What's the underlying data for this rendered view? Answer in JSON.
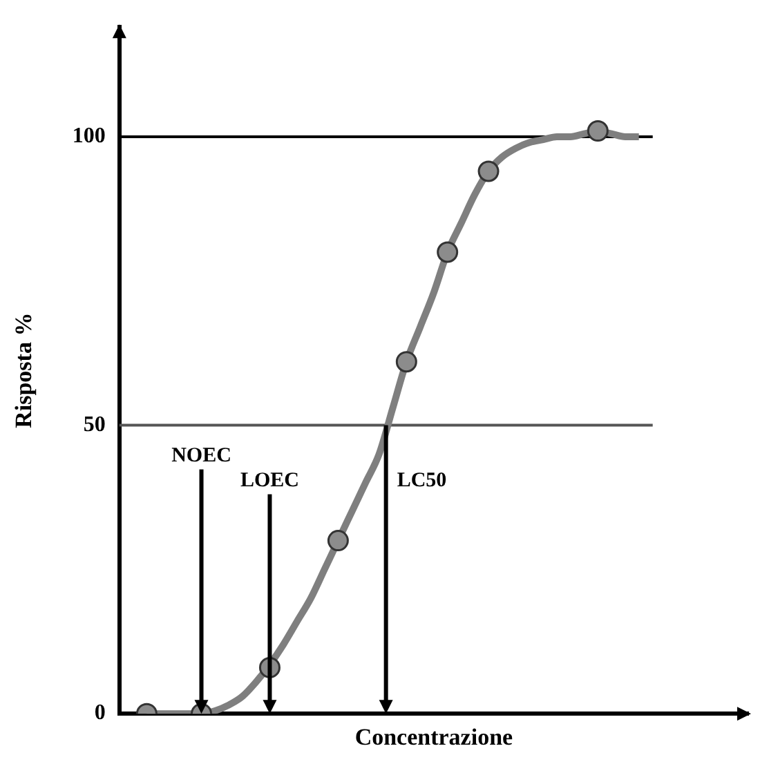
{
  "chart_data": {
    "type": "line",
    "xlabel": "Concentrazione",
    "ylabel": "Risposta %",
    "categories": [
      null,
      null,
      null,
      null,
      null,
      null,
      null,
      null,
      null,
      null,
      null,
      null,
      null,
      null,
      null,
      null,
      null,
      null,
      null,
      null,
      null,
      null,
      null,
      null,
      null,
      null,
      null,
      null,
      null,
      null,
      null,
      null,
      null,
      null,
      null,
      null,
      null,
      null,
      null,
      null,
      null,
      null,
      null,
      null,
      null,
      null,
      null
    ],
    "series": [
      {
        "type": "line",
        "color": "#7f7f7f",
        "marker": "none",
        "values": [
          null,
          null,
          0,
          0,
          0,
          0,
          0,
          0.5,
          1.5,
          3,
          5.5,
          8.5,
          12,
          16,
          20,
          25,
          30,
          35,
          40,
          45,
          53,
          61,
          67,
          73,
          80,
          85,
          90,
          94,
          96.5,
          98,
          99,
          99.5,
          100,
          100,
          100.5,
          101,
          100.5,
          100,
          100,
          null,
          null,
          null,
          null,
          null,
          null,
          null,
          null
        ]
      },
      {
        "type": "scatter",
        "color": "#8c8c8c",
        "marker": "circle",
        "values": [
          null,
          null,
          0,
          null,
          null,
          null,
          0,
          null,
          null,
          null,
          null,
          8,
          null,
          null,
          null,
          null,
          30,
          null,
          null,
          null,
          null,
          61,
          null,
          null,
          80,
          null,
          null,
          94,
          null,
          null,
          null,
          null,
          null,
          null,
          null,
          101,
          null,
          null,
          null,
          null,
          null,
          null,
          null,
          null,
          null,
          null,
          null
        ]
      }
    ],
    "ylim": [
      0,
      119
    ],
    "yticks": [
      0,
      50,
      100
    ],
    "grid": false,
    "legend": false,
    "ref_lines": [
      {
        "axis": "y",
        "value": 100,
        "color": "#000000"
      },
      {
        "axis": "y",
        "value": 50,
        "color": "#555555"
      }
    ],
    "annotations": [
      "NOEC",
      "LOEC",
      "LC50"
    ]
  }
}
